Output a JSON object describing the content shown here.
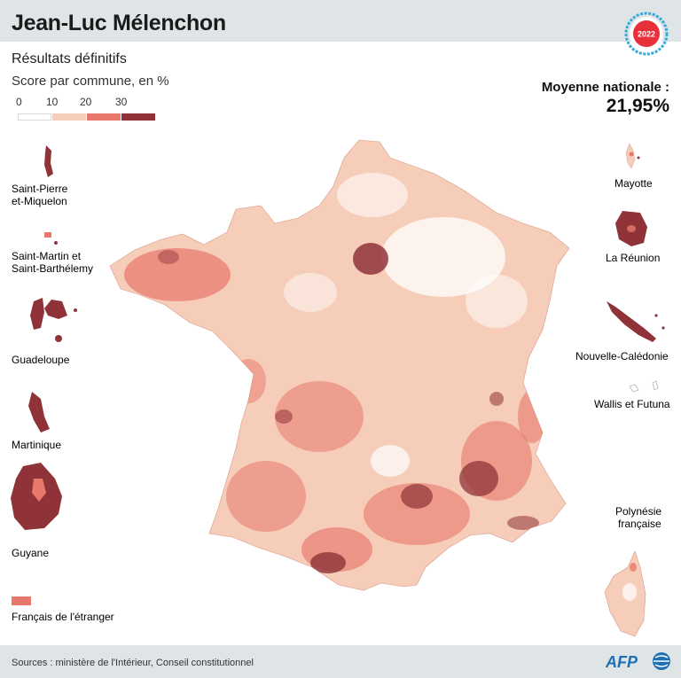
{
  "header": {
    "title": "Jean-Luc Mélenchon",
    "badge_year": "2022"
  },
  "subtitle": "Résultats définitifs",
  "unit_label": "Score par commune, en %",
  "legend": {
    "ticks": [
      "0",
      "10",
      "20",
      "30"
    ],
    "bins": [
      {
        "from": 0,
        "to": 10,
        "color": "#ffffff"
      },
      {
        "from": 10,
        "to": 20,
        "color": "#f6cdb9"
      },
      {
        "from": 20,
        "to": 30,
        "color": "#e8786b"
      },
      {
        "from": 30,
        "to": null,
        "color": "#8f3338"
      }
    ]
  },
  "national_average": {
    "label": "Moyenne nationale :",
    "value": "21,95%"
  },
  "territories": {
    "saint_pierre": [
      "Saint-Pierre",
      "et-Miquelon"
    ],
    "saint_martin": [
      "Saint-Martin et",
      "Saint-Barthélemy"
    ],
    "guadeloupe": "Guadeloupe",
    "martinique": "Martinique",
    "guyane": "Guyane",
    "francais_etranger": "Français de l'étranger",
    "mayotte": "Mayotte",
    "reunion": "La Réunion",
    "nouvelle_caledonie": "Nouvelle-Calédonie",
    "wallis": "Wallis et Futuna",
    "polynesie": [
      "Polynésie",
      "française"
    ]
  },
  "colors": {
    "dark": "#8f3338",
    "mid": "#e8786b",
    "light": "#f6cdb9",
    "bar": "#dfe4e7",
    "badge_red": "#e8303a",
    "badge_blue": "#35a9d9",
    "afp_blue": "#1f6fb4"
  },
  "footer": {
    "source": "Sources : ministère de l'Intérieur, Conseil constitutionnel",
    "logo": "AFP"
  }
}
